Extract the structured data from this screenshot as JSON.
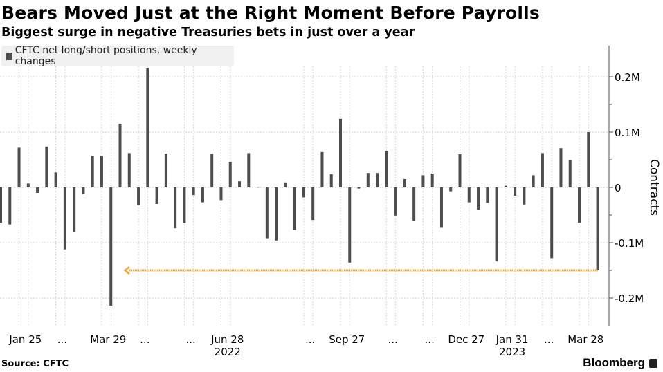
{
  "header": {
    "title": "Bears Moved Just at the Right Moment Before Payrolls",
    "subtitle": "Biggest surge in negative Treasuries bets in just over a year"
  },
  "legend": {
    "label": "CFTC net long/short positions, weekly changes"
  },
  "footer": {
    "source": "Source: CFTC",
    "brand": "Bloomberg"
  },
  "colors": {
    "bar": "#4d4d4d",
    "annotation": "#f5a623",
    "grid": "#cccccc"
  },
  "chart_data": {
    "type": "bar",
    "title": "Bears Moved Just at the Right Moment Before Payrolls",
    "subtitle": "Biggest surge in negative Treasuries bets in just over a year",
    "ylabel": "Contracts",
    "ylim": [
      -0.25,
      0.25
    ],
    "y_unit": "M",
    "yticks": [
      {
        "v": 0.2,
        "label": "0.2M"
      },
      {
        "v": 0.1,
        "label": "0.1M"
      },
      {
        "v": 0,
        "label": "0"
      },
      {
        "v": -0.1,
        "label": "-0.1M"
      },
      {
        "v": -0.2,
        "label": "-0.2M"
      }
    ],
    "xticks": [
      {
        "date": "2022-01-25",
        "label": "Jan 25"
      },
      {
        "date": "2022-02-22",
        "label": "..."
      },
      {
        "date": "2022-03-29",
        "label": "Mar 29"
      },
      {
        "date": "2022-04-26",
        "label": "..."
      },
      {
        "date": "2022-05-31",
        "label": "..."
      },
      {
        "date": "2022-06-28",
        "label": "Jun 28"
      },
      {
        "date": "2022-08-30",
        "label": "..."
      },
      {
        "date": "2022-09-27",
        "label": "Sep 27"
      },
      {
        "date": "2022-11-01",
        "label": "..."
      },
      {
        "date": "2022-11-29",
        "label": "..."
      },
      {
        "date": "2022-12-27",
        "label": "Dec 27"
      },
      {
        "date": "2023-01-31",
        "label": "Jan 31"
      },
      {
        "date": "2023-02-28",
        "label": "..."
      },
      {
        "date": "2023-03-28",
        "label": "Mar 28"
      }
    ],
    "year_labels": [
      {
        "date": "2022-06-28",
        "label": "2022"
      },
      {
        "date": "2023-01-31",
        "label": "2023"
      }
    ],
    "grid": true,
    "legend_position": "top-left",
    "series": [
      {
        "name": "CFTC net long/short positions, weekly changes",
        "x": [
          "2022-01-04",
          "2022-01-11",
          "2022-01-18",
          "2022-01-25",
          "2022-02-01",
          "2022-02-08",
          "2022-02-15",
          "2022-02-22",
          "2022-03-01",
          "2022-03-08",
          "2022-03-15",
          "2022-03-22",
          "2022-03-29",
          "2022-04-05",
          "2022-04-12",
          "2022-04-19",
          "2022-04-26",
          "2022-05-03",
          "2022-05-10",
          "2022-05-17",
          "2022-05-24",
          "2022-05-31",
          "2022-06-07",
          "2022-06-14",
          "2022-06-21",
          "2022-06-28",
          "2022-07-05",
          "2022-07-12",
          "2022-07-19",
          "2022-07-26",
          "2022-08-02",
          "2022-08-09",
          "2022-08-16",
          "2022-08-23",
          "2022-08-30",
          "2022-09-06",
          "2022-09-13",
          "2022-09-20",
          "2022-09-27",
          "2022-10-04",
          "2022-10-11",
          "2022-10-18",
          "2022-10-25",
          "2022-11-01",
          "2022-11-08",
          "2022-11-15",
          "2022-11-22",
          "2022-11-29",
          "2022-12-06",
          "2022-12-13",
          "2022-12-20",
          "2022-12-27",
          "2023-01-03",
          "2023-01-10",
          "2023-01-17",
          "2023-01-24",
          "2023-01-31",
          "2023-02-07",
          "2023-02-14",
          "2023-02-21",
          "2023-02-28",
          "2023-03-07",
          "2023-03-14",
          "2023-03-21",
          "2023-03-28",
          "2023-04-04"
        ],
        "values": [
          -0.064,
          -0.067,
          0.072,
          0.007,
          -0.01,
          0.074,
          0.027,
          -0.112,
          -0.081,
          -0.012,
          0.057,
          0.057,
          -0.214,
          0.115,
          0.062,
          -0.032,
          0.215,
          -0.03,
          0.061,
          -0.074,
          -0.065,
          -0.014,
          -0.027,
          0.061,
          -0.023,
          0.046,
          0.011,
          0.062,
          0.001,
          -0.092,
          -0.096,
          0.009,
          -0.077,
          -0.018,
          -0.059,
          0.064,
          0.024,
          0.124,
          -0.136,
          -0.002,
          0.026,
          0.026,
          0.066,
          -0.051,
          0.015,
          -0.06,
          0.022,
          0.025,
          -0.073,
          -0.007,
          0.06,
          -0.027,
          -0.04,
          -0.028,
          -0.134,
          0.003,
          -0.015,
          -0.031,
          0.022,
          0.062,
          -0.128,
          0.071,
          0.049,
          -0.064,
          0.1,
          -0.15
        ]
      }
    ],
    "annotations": [
      {
        "type": "arrow",
        "value": -0.15,
        "from": "2023-04-04",
        "to": "2022-04-12",
        "color": "#f5a623"
      }
    ]
  }
}
